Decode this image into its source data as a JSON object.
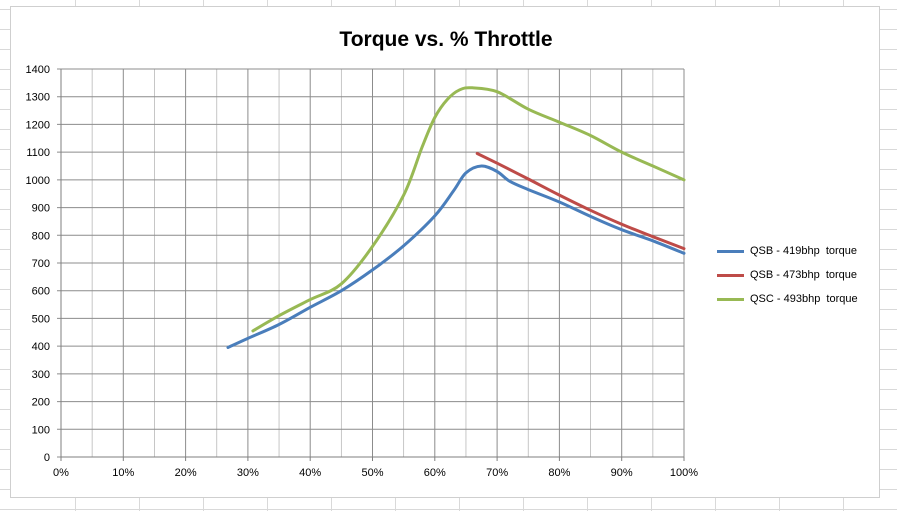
{
  "chart_data": {
    "type": "line",
    "title": "Torque vs. % Throttle",
    "xlabel": "",
    "ylabel": "",
    "xlim": [
      0,
      100
    ],
    "ylim": [
      0,
      1400
    ],
    "x_ticks": [
      "0%",
      "10%",
      "20%",
      "30%",
      "40%",
      "50%",
      "60%",
      "70%",
      "80%",
      "90%",
      "100%"
    ],
    "y_ticks": [
      "0",
      "100",
      "200",
      "300",
      "400",
      "500",
      "600",
      "700",
      "800",
      "900",
      "1000",
      "1100",
      "1200",
      "1300",
      "1400"
    ],
    "grid": true,
    "legend_position": "right",
    "series": [
      {
        "name": "QSB - 419bhp  torque",
        "color": "#4a7ebb",
        "points": [
          [
            26.8,
            395
          ],
          [
            30,
            428
          ],
          [
            35,
            478
          ],
          [
            40,
            540
          ],
          [
            45,
            600
          ],
          [
            50,
            675
          ],
          [
            55,
            762
          ],
          [
            60,
            870
          ],
          [
            63,
            960
          ],
          [
            65,
            1025
          ],
          [
            67.5,
            1050
          ],
          [
            70,
            1030
          ],
          [
            72,
            995
          ],
          [
            75,
            965
          ],
          [
            80,
            920
          ],
          [
            85,
            868
          ],
          [
            90,
            820
          ],
          [
            95,
            780
          ],
          [
            100,
            735
          ]
        ]
      },
      {
        "name": "QSB - 473bhp  torque",
        "color": "#be4b48",
        "points": [
          [
            66.8,
            1095
          ],
          [
            70,
            1060
          ],
          [
            75,
            1003
          ],
          [
            80,
            945
          ],
          [
            85,
            890
          ],
          [
            90,
            840
          ],
          [
            95,
            795
          ],
          [
            100,
            752
          ]
        ]
      },
      {
        "name": "QSC - 493bhp  torque",
        "color": "#98b954",
        "points": [
          [
            30.8,
            455
          ],
          [
            35,
            510
          ],
          [
            40,
            568
          ],
          [
            45,
            625
          ],
          [
            50,
            760
          ],
          [
            55,
            945
          ],
          [
            58,
            1120
          ],
          [
            60,
            1225
          ],
          [
            62,
            1290
          ],
          [
            64,
            1325
          ],
          [
            66,
            1332
          ],
          [
            70,
            1318
          ],
          [
            75,
            1255
          ],
          [
            80,
            1208
          ],
          [
            85,
            1160
          ],
          [
            90,
            1100
          ],
          [
            95,
            1050
          ],
          [
            100,
            1000
          ]
        ]
      }
    ]
  }
}
